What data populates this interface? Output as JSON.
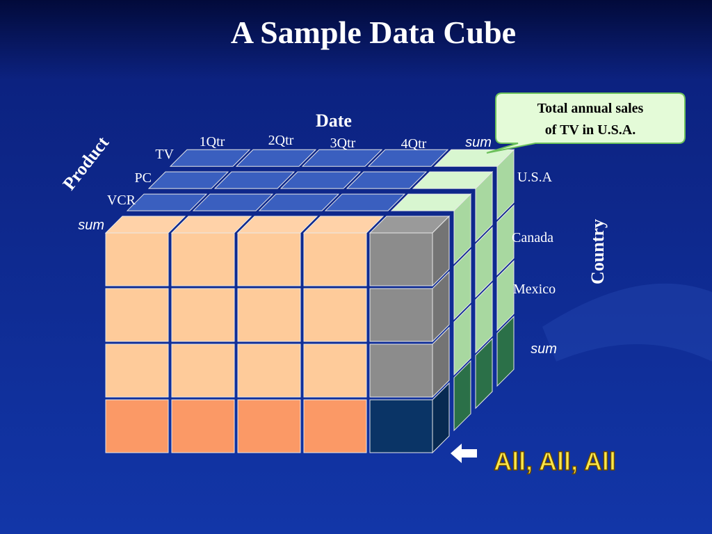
{
  "title": "A Sample Data Cube",
  "date": {
    "label": "Date",
    "items": [
      "1Qtr",
      "2Qtr",
      "3Qtr",
      "4Qtr",
      "sum"
    ]
  },
  "product": {
    "label": "Product",
    "items": [
      "TV",
      "PC",
      "VCR",
      "sum"
    ]
  },
  "country": {
    "label": "Country",
    "items": [
      "U.S.A",
      "Canada",
      "Mexico",
      "sum"
    ]
  },
  "callout": {
    "lines": [
      "Total annual sales",
      "of  TV in U.S.A."
    ]
  },
  "all_label": "All, All, All"
}
